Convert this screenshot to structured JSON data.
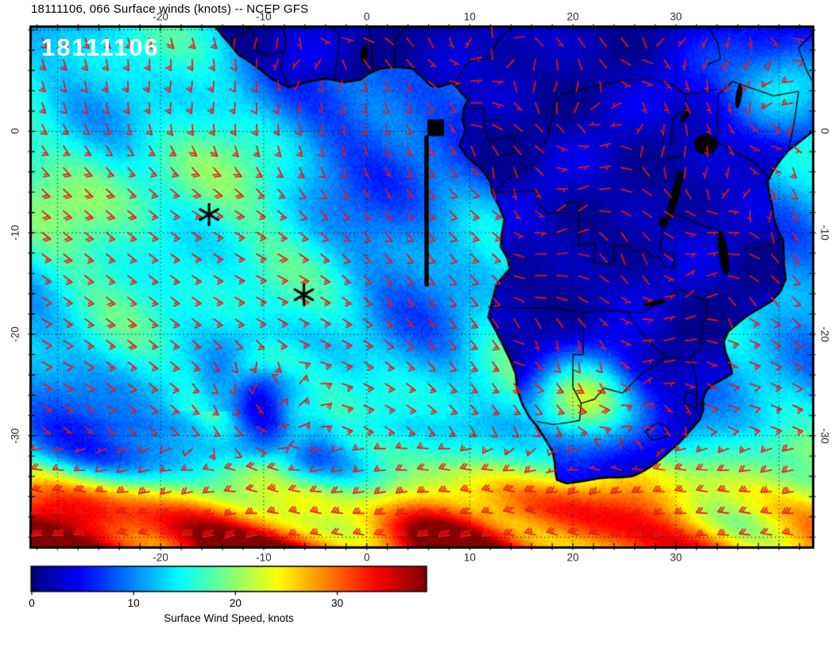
{
  "header": {
    "title": "18111106, 066 Surface winds (knots) -- NCEP GFS"
  },
  "map": {
    "timestamp_label": "18111106",
    "run": "18111106",
    "forecast_hour": "066",
    "field": "Surface winds",
    "units": "knots",
    "source": "NCEP GFS",
    "projection": {
      "lon_min": -32.5,
      "lon_max": 43.2,
      "lat_min": -40.9,
      "lat_max": 10.2
    },
    "axes": {
      "lon_ticks": [
        -20,
        -10,
        0,
        10,
        20,
        30
      ],
      "lat_ticks": [
        0,
        -10,
        -20,
        -30
      ],
      "grid_step_deg": 10
    },
    "style": {
      "barb_color": "#ee1411",
      "coast_color": "#000000",
      "grid_color": "rgba(0,0,0,0.8)"
    },
    "markers": {
      "asterisks": [
        {
          "lon": -15.3,
          "lat": -8.2
        },
        {
          "lon": -6.1,
          "lat": -16.1
        }
      ],
      "buoy_square": {
        "lon": 6.7,
        "lat": 0.35
      },
      "track_line": {
        "lon": 5.8,
        "lat_start": -0.6,
        "lat_end": -15.1
      }
    }
  },
  "colorbar": {
    "label": "Surface Wind Speed, knots",
    "ticks": [
      0,
      10,
      20,
      30
    ],
    "min": 0,
    "max": 38.7,
    "palette": "jet"
  }
}
